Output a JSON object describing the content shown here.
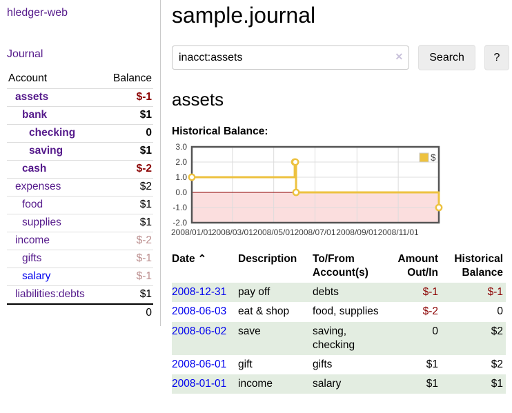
{
  "app": {
    "brand": "hledger-web"
  },
  "sidebar": {
    "journal_link": "Journal",
    "headers": {
      "account": "Account",
      "balance": "Balance"
    },
    "accounts": [
      {
        "name": "assets",
        "balance": "$-1",
        "depth": 1,
        "bold": true,
        "name_color": "purple",
        "balance_color": "darkred"
      },
      {
        "name": "bank",
        "balance": "$1",
        "depth": 2,
        "bold": true,
        "name_color": "purple",
        "balance_color": "black"
      },
      {
        "name": "checking",
        "balance": "0",
        "depth": 3,
        "bold": true,
        "name_color": "purple",
        "balance_color": "black"
      },
      {
        "name": "saving",
        "balance": "$1",
        "depth": 3,
        "bold": true,
        "name_color": "purple",
        "balance_color": "black"
      },
      {
        "name": "cash",
        "balance": "$-2",
        "depth": 2,
        "bold": true,
        "name_color": "purple",
        "balance_color": "darkred"
      },
      {
        "name": "expenses",
        "balance": "$2",
        "depth": 1,
        "bold": false,
        "name_color": "purple",
        "balance_color": "black"
      },
      {
        "name": "food",
        "balance": "$1",
        "depth": 2,
        "bold": false,
        "name_color": "purple",
        "balance_color": "black"
      },
      {
        "name": "supplies",
        "balance": "$1",
        "depth": 2,
        "bold": false,
        "name_color": "purple",
        "balance_color": "black"
      },
      {
        "name": "income",
        "balance": "$-2",
        "depth": 1,
        "bold": false,
        "name_color": "purple",
        "balance_color": "rose"
      },
      {
        "name": "gifts",
        "balance": "$-1",
        "depth": 2,
        "bold": false,
        "name_color": "purple",
        "balance_color": "rose"
      },
      {
        "name": "salary",
        "balance": "$-1",
        "depth": 2,
        "bold": false,
        "name_color": "blue",
        "balance_color": "rose"
      },
      {
        "name": "liabilities:debts",
        "balance": "$1",
        "depth": 1,
        "bold": false,
        "name_color": "purple",
        "balance_color": "black"
      }
    ],
    "total": "0"
  },
  "main": {
    "title": "sample.journal",
    "search": {
      "value": "inacct:assets",
      "clear_icon": "✕",
      "button_label": "Search",
      "help_label": "?"
    },
    "account_title": "assets",
    "chart_heading": "Historical Balance:"
  },
  "chart_data": {
    "type": "line",
    "title": "Historical Balance",
    "step": true,
    "x_ticks": [
      "2008/01/01",
      "2008/03/01",
      "2008/05/01",
      "2008/07/01",
      "2008/09/01",
      "2008/11/01"
    ],
    "y_ticks": [
      3.0,
      2.0,
      1.0,
      0.0,
      -1.0,
      -2.0
    ],
    "xmin": "2008-01-01",
    "xmax": "2008-12-31",
    "ylim": [
      -2,
      3
    ],
    "series": [
      {
        "name": "$",
        "color": "#EDC240",
        "points": [
          [
            "2008-01-01",
            1
          ],
          [
            "2008-06-01",
            2
          ],
          [
            "2008-06-02",
            2
          ],
          [
            "2008-06-03",
            0
          ],
          [
            "2008-12-31",
            -1
          ]
        ]
      }
    ],
    "legend": {
      "label": "$",
      "position": "top-right"
    },
    "colors": {
      "border": "#545454",
      "grid": "#DCDCDC",
      "negative_region": "#FBDEDE",
      "zero_line": "#8B0000",
      "tick_text": "#3C3C3C",
      "legend_box_border": "#CCCCCC",
      "legend_text": "#444444"
    }
  },
  "register": {
    "headers": {
      "date": "Date",
      "sort_indicator": "⌃",
      "description": "Description",
      "accounts": "To/From Account(s)",
      "amount": "Amount Out/In",
      "balance": "Historical Balance"
    },
    "rows": [
      {
        "date": "2008-12-31",
        "description": "pay off",
        "accounts": "debts",
        "amount": "$-1",
        "amount_negative": true,
        "balance": "$-1",
        "balance_negative": true,
        "shaded": true
      },
      {
        "date": "2008-06-03",
        "description": "eat & shop",
        "accounts": "food, supplies",
        "amount": "$-2",
        "amount_negative": true,
        "balance": "0",
        "balance_negative": false,
        "shaded": false
      },
      {
        "date": "2008-06-02",
        "description": "save",
        "accounts": "saving, checking",
        "amount": "0",
        "amount_negative": false,
        "balance": "$2",
        "balance_negative": false,
        "shaded": true
      },
      {
        "date": "2008-06-01",
        "description": "gift",
        "accounts": "gifts",
        "amount": "$1",
        "amount_negative": false,
        "balance": "$2",
        "balance_negative": false,
        "shaded": false
      },
      {
        "date": "2008-01-01",
        "description": "income",
        "accounts": "salary",
        "amount": "$1",
        "amount_negative": false,
        "balance": "$1",
        "balance_negative": false,
        "shaded": true
      }
    ]
  },
  "colors": {
    "link_purple": "#551A8B",
    "link_blue": "#0000EE",
    "negative_strong": "#8B0000",
    "negative_faded": "#BC8F8F",
    "row_shade_green": "#E3EDE1"
  }
}
